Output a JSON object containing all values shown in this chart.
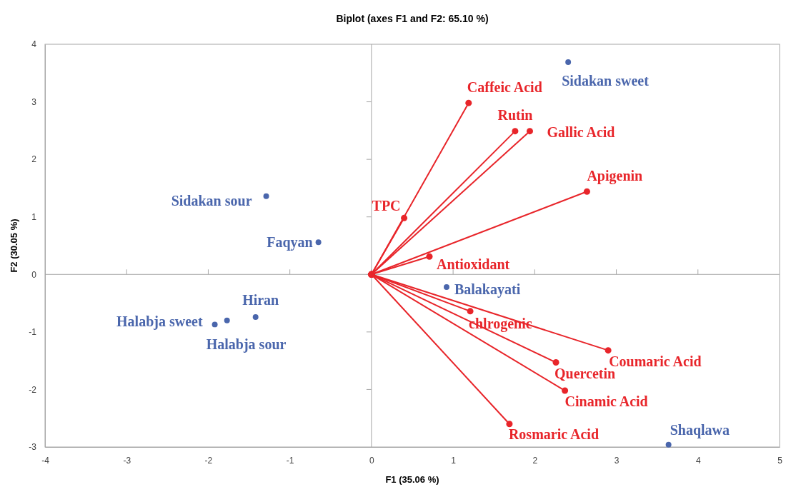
{
  "chart_data": {
    "type": "scatter",
    "title": "Biplot (axes F1 and F2: 65.10 %)",
    "xlabel": "F1 (35.06 %)",
    "ylabel": "F2 (30.05 %)",
    "xlim": [
      -4,
      5
    ],
    "xticks": [
      -4,
      -3,
      -2,
      -1,
      0,
      1,
      2,
      3,
      4,
      5
    ],
    "ylim": [
      -3,
      4
    ],
    "yticks": [
      -3,
      -2,
      -1,
      0,
      1,
      2,
      3,
      4
    ],
    "marker": "circle",
    "series": [
      {
        "color": "#4a66ac",
        "x": [
          2.41,
          -1.29,
          -0.65,
          -1.42,
          -1.77,
          -1.92,
          0.92,
          3.64
        ],
        "values": [
          3.69,
          1.36,
          0.56,
          -0.74,
          -0.8,
          -0.87,
          -0.22,
          -2.96
        ]
      },
      {
        "type": "line",
        "name": "TPC",
        "color": "#e8252a",
        "x": [
          0,
          0.4
        ],
        "values": [
          0,
          0.98
        ]
      },
      {
        "type": "line",
        "name": "Antioxidant",
        "color": "#e8252a",
        "x": [
          0,
          0.71
        ],
        "values": [
          0,
          0.31
        ]
      },
      {
        "type": "line",
        "name": "Caffeic Acid",
        "color": "#e8252a",
        "x": [
          0,
          1.19
        ],
        "values": [
          0,
          2.98
        ]
      },
      {
        "type": "line",
        "name": "Rutin",
        "color": "#e8252a",
        "x": [
          0,
          1.76
        ],
        "values": [
          0,
          2.49
        ]
      },
      {
        "type": "line",
        "name": "Gallic Acid",
        "color": "#e8252a",
        "x": [
          0,
          1.94
        ],
        "values": [
          0,
          2.49
        ]
      },
      {
        "type": "line",
        "name": "Apigenin",
        "color": "#e8252a",
        "x": [
          0,
          2.64
        ],
        "values": [
          0,
          1.44
        ]
      },
      {
        "type": "line",
        "name": "chlrogenic",
        "color": "#e8252a",
        "x": [
          0,
          1.21
        ],
        "values": [
          0,
          -0.64
        ]
      },
      {
        "type": "line",
        "name": "Coumaric Acid",
        "color": "#e8252a",
        "x": [
          0,
          2.9
        ],
        "values": [
          0,
          -1.32
        ]
      },
      {
        "type": "line",
        "name": "Quercetin",
        "color": "#e8252a",
        "x": [
          0,
          2.26
        ],
        "values": [
          0,
          -1.53
        ]
      },
      {
        "type": "line",
        "name": "Cinamic Acid",
        "color": "#e8252a",
        "x": [
          0,
          2.37
        ],
        "values": [
          0,
          -2.02
        ]
      },
      {
        "type": "line",
        "name": "Rosmaric Acid",
        "color": "#e8252a",
        "x": [
          0,
          1.69
        ],
        "values": [
          0,
          -2.6
        ]
      }
    ],
    "annotations": [
      {
        "text": "Sidakan sweet",
        "x": 2.41,
        "y": 3.69
      },
      {
        "text": "Sidakan sour",
        "x": -1.29,
        "y": 1.36
      },
      {
        "text": "Faqyan",
        "x": -0.65,
        "y": 0.56
      },
      {
        "text": "Hiran",
        "x": -1.42,
        "y": -0.74
      },
      {
        "text": "Halabja sour",
        "x": -1.77,
        "y": -0.8
      },
      {
        "text": "Halabja sweet",
        "x": -1.92,
        "y": -0.87
      },
      {
        "text": "Balakayati",
        "x": 0.92,
        "y": -0.22
      },
      {
        "text": "Shaqlawa",
        "x": 3.64,
        "y": -2.96
      }
    ]
  }
}
